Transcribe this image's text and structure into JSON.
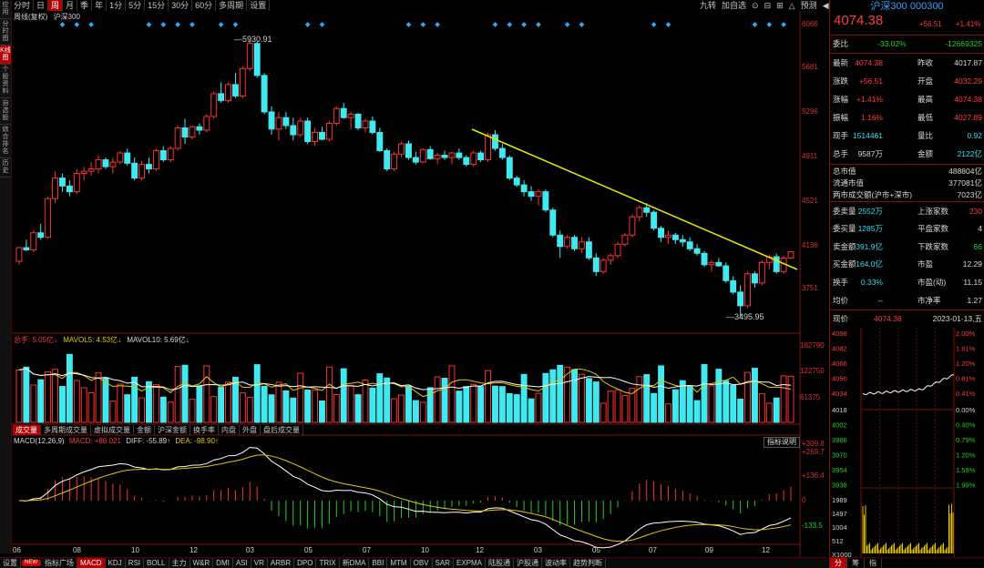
{
  "period_tabs": [
    "分时",
    "日",
    "周",
    "月",
    "季",
    "年",
    "1分",
    "5分",
    "15分",
    "30分",
    "60分",
    "多周期",
    "设置"
  ],
  "period_active": 2,
  "right_tools": [
    "九转",
    "加自选",
    "⊙",
    "⊟",
    "⊞",
    "△",
    "预测",
    "◀"
  ],
  "vtabs": [
    "应用",
    "分时图",
    "K线图",
    "个股资料",
    "自选股",
    "综合排名",
    "历史"
  ],
  "vtabs_active": 2,
  "chart_title": {
    "mode": "周线(复权)",
    "name": "沪深300"
  },
  "price_axis": [
    "6066",
    "5681",
    "5296",
    "4911",
    "4521",
    "4136",
    "3751"
  ],
  "vol_axis": [
    "182790",
    "122750",
    "61375"
  ],
  "macd_axis": {
    "top1": "+309.8",
    "top2": "+269.7",
    "mid": "+136.4",
    "zero": "0",
    "low": "-133.5"
  },
  "annotations": {
    "high": "5930.91",
    "low": "3495.95"
  },
  "vol_legend": {
    "total": "总手: 5.05亿↓",
    "mavol5": "MAVOL5: 4.53亿↓",
    "mavol10": "MAVOL10: 5.69亿↓"
  },
  "indicator_tabs": [
    "成交量",
    "多周期成交量",
    "虚拟成交量",
    "金额",
    "沪深金额",
    "换手率",
    "内盘",
    "外盘",
    "盘后成交量"
  ],
  "macd_legend": {
    "name": "MACD(12,26,9)",
    "macd": "MACD: +86.021",
    "diff": "DIFF: -55.89↑",
    "dea": "DEA: -98.90↑",
    "help": "指标说明"
  },
  "date_axis": [
    "06",
    "08",
    "10",
    "12",
    "03",
    "05",
    "07",
    "10",
    "12",
    "03",
    "05",
    "07",
    "09",
    "12"
  ],
  "bottom_tabs": [
    "设置",
    "NEW",
    "指标广场",
    "MACD",
    "KDJ",
    "RSI",
    "BOLL",
    "主力",
    "W&R",
    "DMI",
    "ASI",
    "VR",
    "ARBR",
    "DPO",
    "TRIX",
    "新DMA",
    "BBI",
    "MTM",
    "OBV",
    "SAR",
    "EXPMA",
    "陆股通",
    "沪股通",
    "波动率",
    "趋势判断"
  ],
  "bottom_active": 3,
  "quote": {
    "title": "沪深300 000300",
    "price": "4074.38",
    "change": "+56.51",
    "pct": "+1.41%",
    "webi_label": "委比",
    "webi": "-33.02%",
    "webi_diff": "-12669325",
    "rows1": [
      [
        "最新",
        "4074.38",
        "昨收",
        "4017.87"
      ],
      [
        "涨跌",
        "+56.51",
        "开盘",
        "4032.29"
      ],
      [
        "涨幅",
        "+1.41%",
        "最高",
        "4074.38"
      ],
      [
        "振幅",
        "1.16%",
        "最低",
        "4027.89"
      ],
      [
        "现手",
        "1514461",
        "量比",
        "0.92"
      ],
      [
        "总手",
        "9587万",
        "金额",
        "2122亿"
      ]
    ],
    "rows2": [
      [
        "总市值",
        "488804亿"
      ],
      [
        "流通市值",
        "377081亿"
      ],
      [
        "两市成交额(沪市+深市)",
        "7023亿"
      ]
    ],
    "rows3": [
      [
        "委卖量",
        "2552万",
        "上涨家数",
        "230"
      ],
      [
        "委买量",
        "1285万",
        "平盘家数",
        "4"
      ],
      [
        "卖金额",
        "391.9亿",
        "下跌家数",
        "66"
      ],
      [
        "买金额",
        "164.0亿",
        "市盈",
        "12.29"
      ],
      [
        "换手",
        "0.33%",
        "市盈(动)",
        "11.15"
      ],
      [
        "均价",
        "--",
        "市净率",
        "1.27"
      ]
    ],
    "mini_header": {
      "label": "现价",
      "price": "4074.38",
      "date": "2023-01-13,五"
    },
    "mini_left": [
      "4098",
      "4082",
      "4066",
      "4050",
      "4034",
      "4018",
      "4002",
      "3986",
      "3970",
      "3954",
      "3938"
    ],
    "mini_right": [
      "2.00%",
      "1.61%",
      "1.20%",
      "0.81%",
      "0.41%",
      "0.00%",
      "0.40%",
      "0.79%",
      "1.20%",
      "1.59%",
      "1.99%"
    ],
    "mini_vol": [
      "1989",
      "1497",
      "1004",
      "512",
      "X1000"
    ],
    "right_tabs": [
      "分",
      "筹",
      "指"
    ]
  },
  "candles": [
    [
      3990,
      4120,
      3960,
      4110
    ],
    [
      4110,
      4180,
      4080,
      4090
    ],
    [
      4090,
      4260,
      4070,
      4240
    ],
    [
      4240,
      4320,
      4180,
      4200
    ],
    [
      4200,
      4560,
      4190,
      4540
    ],
    [
      4540,
      4780,
      4500,
      4720
    ],
    [
      4720,
      4760,
      4600,
      4650
    ],
    [
      4650,
      4700,
      4560,
      4600
    ],
    [
      4600,
      4800,
      4580,
      4760
    ],
    [
      4760,
      4820,
      4700,
      4780
    ],
    [
      4780,
      4860,
      4740,
      4800
    ],
    [
      4800,
      4920,
      4760,
      4880
    ],
    [
      4880,
      4900,
      4800,
      4820
    ],
    [
      4820,
      4900,
      4760,
      4860
    ],
    [
      4860,
      4960,
      4840,
      4940
    ],
    [
      4940,
      4980,
      4830,
      4850
    ],
    [
      4850,
      4900,
      4700,
      4720
    ],
    [
      4720,
      4870,
      4700,
      4840
    ],
    [
      4840,
      4900,
      4760,
      4800
    ],
    [
      4800,
      4980,
      4780,
      4960
    ],
    [
      4960,
      5000,
      4860,
      4880
    ],
    [
      4880,
      5000,
      4860,
      4980
    ],
    [
      4980,
      5180,
      4960,
      5160
    ],
    [
      5160,
      5240,
      5020,
      5080
    ],
    [
      5080,
      5180,
      5060,
      5170
    ],
    [
      5170,
      5200,
      5100,
      5140
    ],
    [
      5140,
      5280,
      5120,
      5260
    ],
    [
      5260,
      5480,
      5240,
      5460
    ],
    [
      5460,
      5560,
      5380,
      5400
    ],
    [
      5400,
      5560,
      5380,
      5540
    ],
    [
      5540,
      5640,
      5420,
      5440
    ],
    [
      5440,
      5700,
      5420,
      5680
    ],
    [
      5680,
      5930,
      5660,
      5900
    ],
    [
      5900,
      5920,
      5600,
      5620
    ],
    [
      5620,
      5640,
      5280,
      5300
    ],
    [
      5300,
      5350,
      5100,
      5150
    ],
    [
      5150,
      5300,
      5050,
      5250
    ],
    [
      5250,
      5300,
      5150,
      5180
    ],
    [
      5180,
      5250,
      5050,
      5100
    ],
    [
      5100,
      5250,
      5080,
      5220
    ],
    [
      5220,
      5250,
      5020,
      5040
    ],
    [
      5040,
      5160,
      5000,
      5120
    ],
    [
      5120,
      5170,
      5050,
      5060
    ],
    [
      5060,
      5220,
      5040,
      5200
    ],
    [
      5200,
      5350,
      5180,
      5330
    ],
    [
      5330,
      5380,
      5240,
      5250
    ],
    [
      5250,
      5300,
      5150,
      5280
    ],
    [
      5280,
      5290,
      5140,
      5160
    ],
    [
      5160,
      5240,
      5120,
      5220
    ],
    [
      5220,
      5260,
      5100,
      5120
    ],
    [
      5120,
      5160,
      4950,
      4960
    ],
    [
      4960,
      4980,
      4780,
      4800
    ],
    [
      4800,
      4950,
      4780,
      4930
    ],
    [
      4930,
      5040,
      4900,
      5020
    ],
    [
      5020,
      5050,
      4880,
      4900
    ],
    [
      4900,
      4950,
      4840,
      4860
    ],
    [
      4860,
      4980,
      4850,
      4970
    ],
    [
      4970,
      5000,
      4880,
      4890
    ],
    [
      4890,
      4940,
      4840,
      4920
    ],
    [
      4920,
      4960,
      4880,
      4900
    ],
    [
      4900,
      4950,
      4840,
      4940
    ],
    [
      4940,
      4980,
      4880,
      4900
    ],
    [
      4900,
      4920,
      4820,
      4840
    ],
    [
      4840,
      4960,
      4820,
      4940
    ],
    [
      4940,
      4960,
      4860,
      4880
    ],
    [
      4880,
      5120,
      4860,
      5100
    ],
    [
      5100,
      5140,
      4960,
      4980
    ],
    [
      4980,
      5020,
      4880,
      4900
    ],
    [
      4900,
      4920,
      4700,
      4720
    ],
    [
      4720,
      4740,
      4640,
      4660
    ],
    [
      4660,
      4700,
      4560,
      4600
    ],
    [
      4600,
      4650,
      4520,
      4560
    ],
    [
      4560,
      4620,
      4480,
      4600
    ],
    [
      4600,
      4620,
      4420,
      4440
    ],
    [
      4440,
      4460,
      4200,
      4220
    ],
    [
      4220,
      4260,
      4020,
      4120
    ],
    [
      4120,
      4220,
      4100,
      4200
    ],
    [
      4200,
      4220,
      4080,
      4100
    ],
    [
      4100,
      4200,
      4060,
      4160
    ],
    [
      4160,
      4200,
      4000,
      4020
    ],
    [
      4020,
      4060,
      3860,
      3900
    ],
    [
      3900,
      4020,
      3880,
      4000
    ],
    [
      4000,
      4060,
      3960,
      4040
    ],
    [
      4040,
      4160,
      4020,
      4140
    ],
    [
      4140,
      4240,
      4120,
      4220
    ],
    [
      4220,
      4400,
      4200,
      4380
    ],
    [
      4380,
      4480,
      4340,
      4460
    ],
    [
      4460,
      4500,
      4380,
      4420
    ],
    [
      4420,
      4440,
      4260,
      4280
    ],
    [
      4280,
      4300,
      4160,
      4200
    ],
    [
      4200,
      4260,
      4140,
      4220
    ],
    [
      4220,
      4240,
      4140,
      4180
    ],
    [
      4180,
      4220,
      4120,
      4160
    ],
    [
      4160,
      4200,
      4080,
      4100
    ],
    [
      4100,
      4140,
      4040,
      4060
    ],
    [
      4060,
      4080,
      3940,
      3960
    ],
    [
      3960,
      4000,
      3900,
      3980
    ],
    [
      3980,
      4020,
      3940,
      3950
    ],
    [
      3950,
      3980,
      3800,
      3820
    ],
    [
      3820,
      3860,
      3700,
      3720
    ],
    [
      3720,
      3780,
      3500,
      3600
    ],
    [
      3600,
      3900,
      3580,
      3880
    ],
    [
      3880,
      3900,
      3760,
      3800
    ],
    [
      3800,
      4000,
      3780,
      3980
    ],
    [
      3980,
      4050,
      3920,
      4030
    ],
    [
      4030,
      4060,
      3880,
      3900
    ],
    [
      3900,
      4040,
      3880,
      4018
    ],
    [
      4018,
      4080,
      4010,
      4074
    ]
  ],
  "vol_scale_max": 182790
}
